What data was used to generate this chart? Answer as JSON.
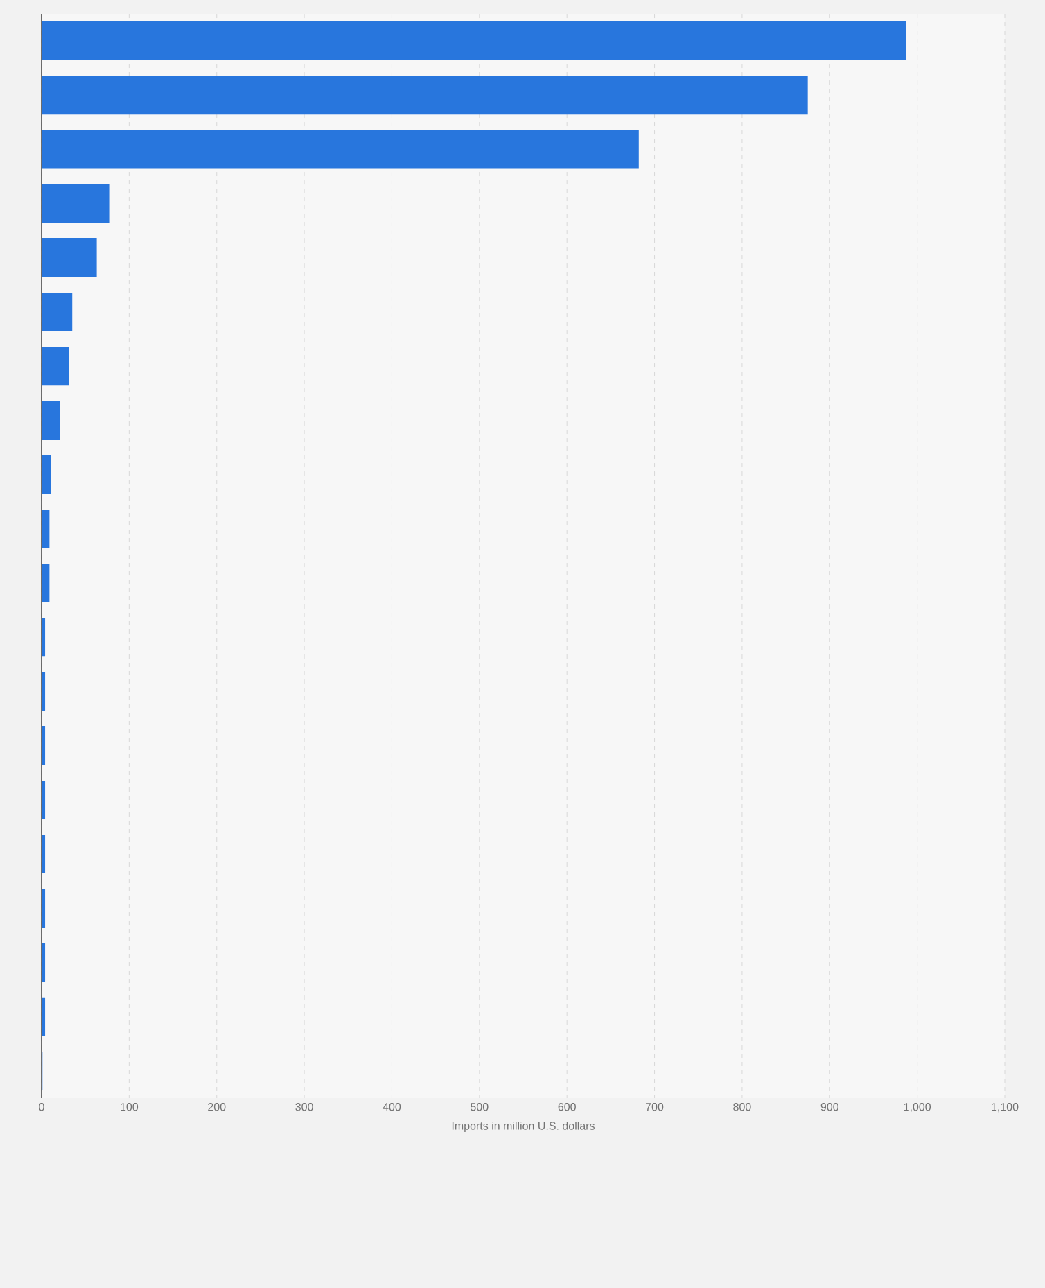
{
  "chart_data": {
    "type": "bar",
    "orientation": "horizontal",
    "xlabel": "Imports in million U.S. dollars",
    "categories": [
      null,
      null,
      null,
      null,
      null,
      null,
      null,
      null,
      null,
      null,
      null,
      null,
      null,
      null,
      null,
      null,
      null,
      null,
      null,
      null
    ],
    "values": [
      987,
      875,
      682,
      78,
      63,
      35,
      31,
      21,
      11,
      9,
      9,
      4,
      4,
      4,
      4,
      4,
      4,
      4,
      4,
      1
    ],
    "color": "#2876dd",
    "xlim": [
      0,
      1100
    ],
    "xticks": [
      0,
      100,
      200,
      300,
      400,
      500,
      600,
      700,
      800,
      900,
      {
        "value": 1000,
        "label": "1,000"
      },
      {
        "value": 1100,
        "label": "1,100"
      }
    ],
    "grid": "x"
  }
}
